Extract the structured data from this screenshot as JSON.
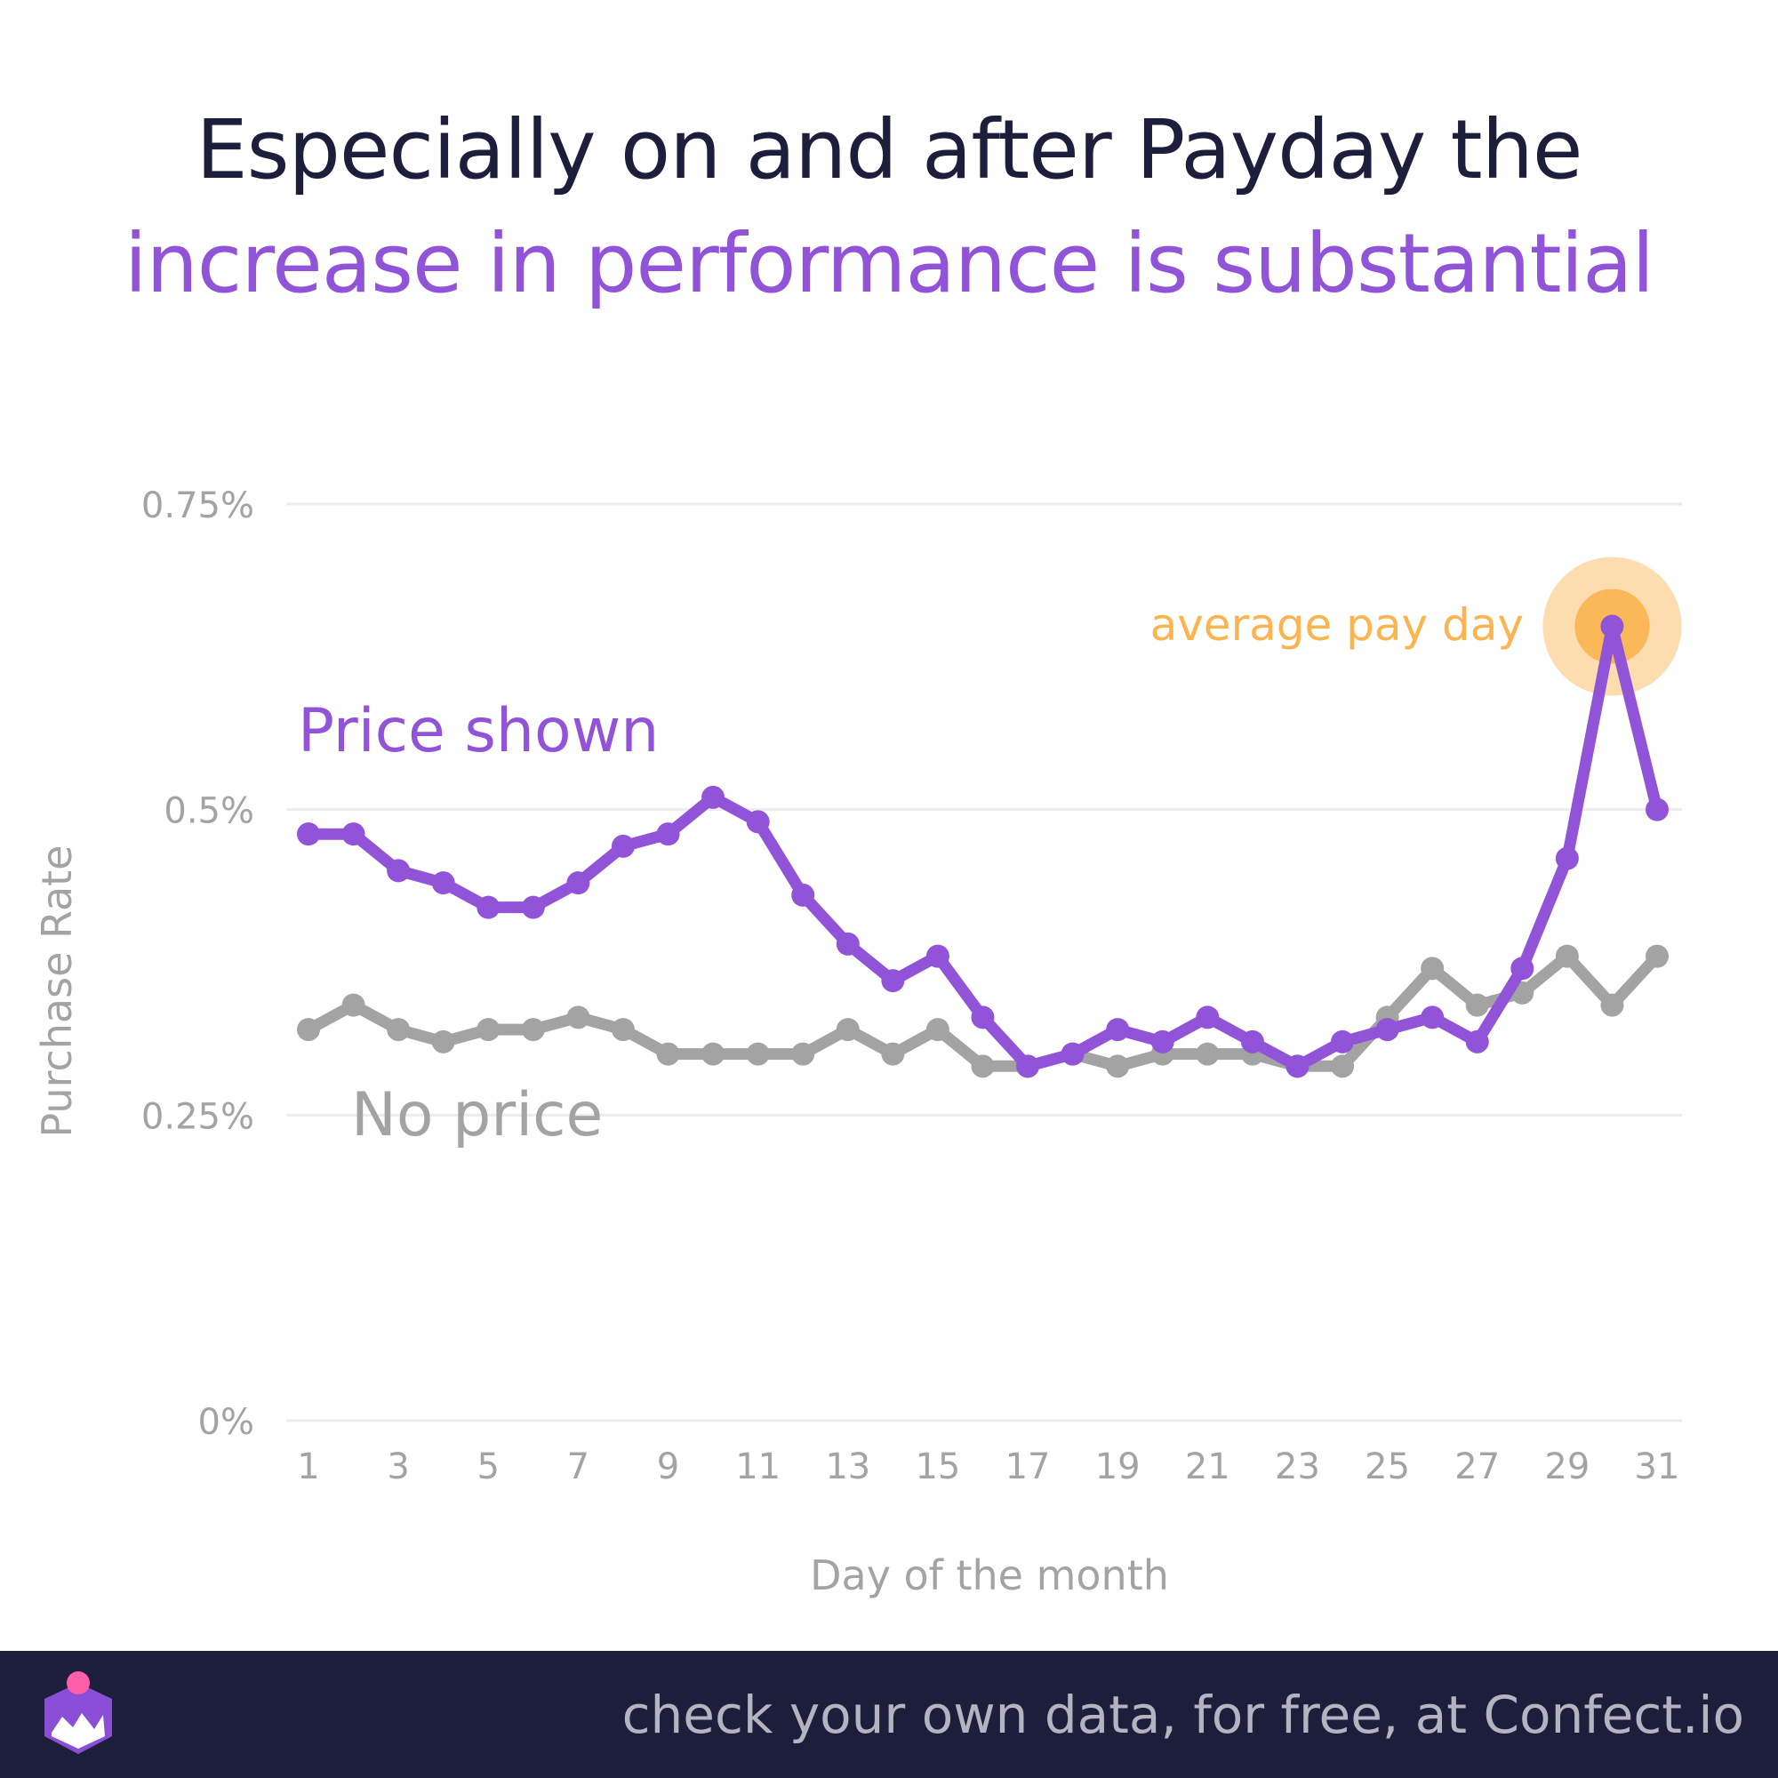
{
  "title": {
    "line1": "Especially on and after Payday the",
    "line2": "increase in performance is substantial"
  },
  "colors": {
    "title_dark": "#1c1e3c",
    "accent_purple": "#9153d8",
    "gray_series": "#a3a3a3",
    "highlight_orange": "#fbb450",
    "footer_bg": "#1c1e3c"
  },
  "chart_data": {
    "type": "line",
    "xlabel": "Day of the month",
    "ylabel": "Purchase Rate",
    "x": [
      1,
      2,
      3,
      4,
      5,
      6,
      7,
      8,
      9,
      10,
      11,
      12,
      13,
      14,
      15,
      16,
      17,
      18,
      19,
      20,
      21,
      22,
      23,
      24,
      25,
      26,
      27,
      28,
      29,
      30,
      31
    ],
    "x_ticks": [
      1,
      3,
      5,
      7,
      9,
      11,
      13,
      15,
      17,
      19,
      21,
      23,
      25,
      27,
      29,
      31
    ],
    "y_ticks": [
      0,
      0.25,
      0.5,
      0.75
    ],
    "y_tick_labels": [
      "0%",
      "0.25%",
      "0.5%",
      "0.75%"
    ],
    "ylim": [
      0,
      0.75
    ],
    "xlim": [
      1,
      31
    ],
    "grid": true,
    "series": [
      {
        "name": "No price",
        "color": "#a3a3a3",
        "values": [
          0.32,
          0.34,
          0.32,
          0.31,
          0.32,
          0.32,
          0.33,
          0.32,
          0.3,
          0.3,
          0.3,
          0.3,
          0.32,
          0.3,
          0.32,
          0.29,
          0.29,
          0.3,
          0.29,
          0.3,
          0.3,
          0.3,
          0.29,
          0.29,
          0.33,
          0.37,
          0.34,
          0.35,
          0.38,
          0.34,
          0.38
        ]
      },
      {
        "name": "Price shown",
        "color": "#9153d8",
        "values": [
          0.48,
          0.48,
          0.45,
          0.44,
          0.42,
          0.42,
          0.44,
          0.47,
          0.48,
          0.51,
          0.49,
          0.43,
          0.39,
          0.36,
          0.38,
          0.33,
          0.29,
          0.3,
          0.32,
          0.31,
          0.33,
          0.31,
          0.29,
          0.31,
          0.32,
          0.33,
          0.31,
          0.37,
          0.46,
          0.65,
          0.5
        ]
      }
    ],
    "annotations": [
      {
        "text": "average pay day",
        "x": 30,
        "y": 0.65,
        "color": "#fbb450"
      }
    ]
  },
  "footer": {
    "text": "check your own data, for free, at Confect.io"
  }
}
